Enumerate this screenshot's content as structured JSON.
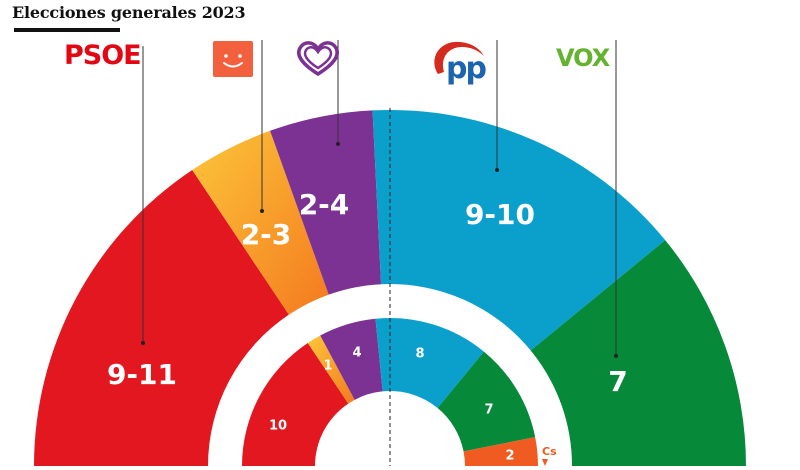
{
  "title": "Elecciones generales 2023",
  "colors": {
    "psoe": "#e3171f",
    "sumar": "#f7a428",
    "podemos": "#7b3292",
    "pp": "#0ba0cc",
    "vox": "#068a3a",
    "cs": "#f05b22",
    "sumar_logo": "#f2603e",
    "podemos_logo": "#7b3292",
    "pp_logo": "#1c64ad"
  },
  "logos": {
    "psoe": "PSOE",
    "vox": "VOX",
    "sumar": "sumar-smile-icon",
    "podemos": "podemos-heart-icon",
    "pp": "pp-gull-icon",
    "cs": "Cs"
  },
  "chart_data": {
    "type": "semicircle-parliament",
    "title": "Elecciones generales 2023",
    "outer_ring": [
      {
        "party": "PSOE",
        "label": "9-11",
        "value": 10
      },
      {
        "party": "Sumar",
        "label": "2-3",
        "value": 2.5
      },
      {
        "party": "Podemos",
        "label": "2-4",
        "value": 3
      },
      {
        "party": "PP",
        "label": "9-10",
        "value": 9.5
      },
      {
        "party": "Vox",
        "label": "7",
        "value": 7
      }
    ],
    "inner_ring": [
      {
        "party": "PSOE",
        "label": "10",
        "value": 10
      },
      {
        "party": "Sumar",
        "label": "1",
        "value": 1
      },
      {
        "party": "Podemos",
        "label": "4",
        "value": 4
      },
      {
        "party": "PP",
        "label": "8",
        "value": 8
      },
      {
        "party": "Vox",
        "label": "7",
        "value": 7
      },
      {
        "party": "Cs",
        "label": "2",
        "value": 2
      }
    ]
  }
}
